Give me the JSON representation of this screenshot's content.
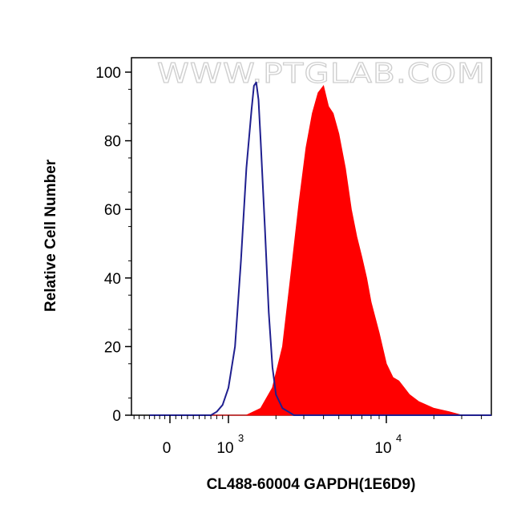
{
  "watermark": "WWW.PTGLAB.COM",
  "colors": {
    "sample_fill": "#ff0000",
    "control_line": "#1f1f8f",
    "axis": "#000000"
  },
  "chart_data": {
    "type": "area",
    "xlabel": "CL488-60004 GAPDH(1E6D9)",
    "ylabel": "Relative Cell Number",
    "x_scale": "biexponential",
    "x_ticks": [
      {
        "value": 0,
        "base": "0",
        "exponent": ""
      },
      {
        "value": 1000,
        "base": "10",
        "exponent": "3"
      },
      {
        "value": 10000,
        "base": "10",
        "exponent": "4"
      }
    ],
    "ylim": [
      0,
      100
    ],
    "y_ticks": [
      0,
      20,
      40,
      60,
      80,
      100
    ],
    "grid": false,
    "series": [
      {
        "style": "line",
        "color": "#1f1f8f",
        "x": [
          -400,
          700,
          800,
          900,
          1000,
          1100,
          1200,
          1300,
          1400,
          1450,
          1500,
          1550,
          1600,
          1700,
          1800,
          1900,
          2000,
          2200,
          2400,
          2600,
          3000,
          60000
        ],
        "y": [
          0,
          0,
          1,
          3,
          8,
          20,
          45,
          72,
          89,
          96,
          97,
          92,
          80,
          55,
          30,
          14,
          6,
          2,
          1,
          0,
          0,
          0
        ]
      },
      {
        "style": "filled",
        "color": "#ff0000",
        "x": [
          -400,
          1300,
          1600,
          1900,
          2200,
          2500,
          2800,
          3100,
          3400,
          3700,
          4000,
          4300,
          4600,
          5000,
          5500,
          6000,
          6500,
          7000,
          7500,
          8000,
          9000,
          10000,
          11000,
          12000,
          14000,
          16000,
          20000,
          25000,
          30000,
          60000
        ],
        "y": [
          0,
          0,
          2,
          8,
          20,
          42,
          62,
          78,
          88,
          94,
          96,
          90,
          88,
          82,
          72,
          60,
          52,
          46,
          40,
          33,
          24,
          15,
          11,
          10,
          6,
          4,
          2,
          1,
          0,
          0
        ]
      }
    ]
  }
}
